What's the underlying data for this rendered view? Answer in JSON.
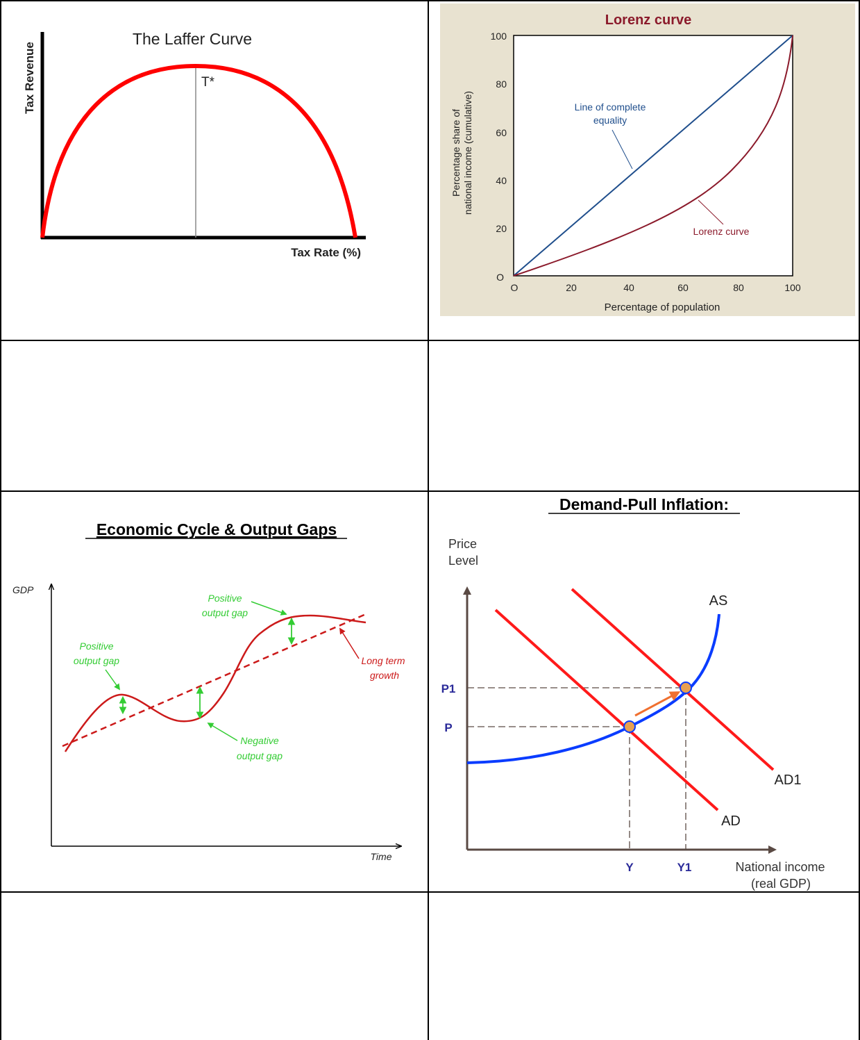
{
  "laffer": {
    "title": "The Laffer Curve",
    "ylabel": "Tax Revenue",
    "xlabel": "Tax Rate (%)",
    "peak_label": "T*",
    "curve_color": "#ff0000"
  },
  "lorenz": {
    "title": "Lorenz curve",
    "title_color": "#8b1a2b",
    "ylabel_line1": "Percentage share of",
    "ylabel_line2": "national income (cumulative)",
    "xlabel": "Percentage of population",
    "origin_x": "O",
    "origin_y": "O",
    "xticks": [
      "20",
      "40",
      "60",
      "80",
      "100"
    ],
    "yticks": [
      "20",
      "40",
      "60",
      "80",
      "100"
    ],
    "equality_label_1": "Line of complete",
    "equality_label_2": "equality",
    "lorenz_label": "Lorenz curve",
    "equality_color": "#1f4e8c",
    "curve_color": "#8b1a2b",
    "background": "#e8e2d0"
  },
  "cycle": {
    "title": "Economic Cycle & Output Gaps",
    "ylabel": "GDP",
    "xlabel": "Time",
    "pos_gap_1a": "Positive",
    "pos_gap_1b": "output gap",
    "pos_gap_2a": "Positive",
    "pos_gap_2b": "output gap",
    "neg_gap_a": "Negative",
    "neg_gap_b": "output gap",
    "trend_a": "Long term",
    "trend_b": "growth",
    "label_color": "#33cc33",
    "curve_color": "#cc1a1a"
  },
  "inflation": {
    "title": "Demand-Pull Inflation:",
    "ylabel_1": "Price",
    "ylabel_2": "Level",
    "xlabel_1": "National income",
    "xlabel_2": "(real GDP)",
    "as_label": "AS",
    "ad_label": "AD",
    "ad1_label": "AD1",
    "p_label": "P",
    "p1_label": "P1",
    "y_label": "Y",
    "y1_label": "Y1",
    "axis_color": "#5a4a44",
    "as_color": "#0a3cff",
    "ad_color": "#ff1a1a",
    "point_color": "#e8a050",
    "arrow_color": "#f07030",
    "tick_label_color": "#2a2a99"
  }
}
